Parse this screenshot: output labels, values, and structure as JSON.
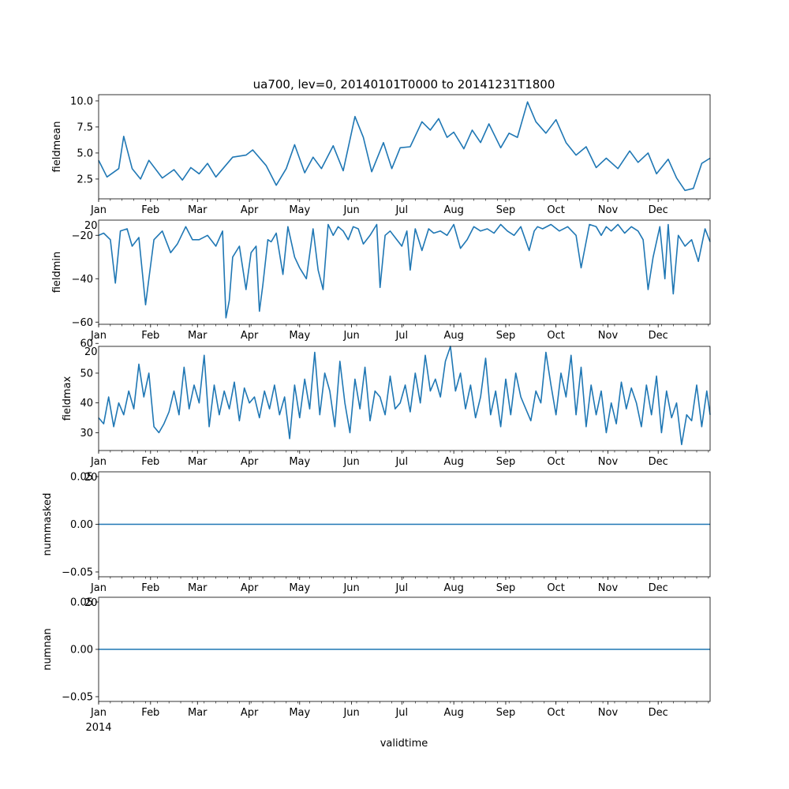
{
  "figure": {
    "title": "ua700, lev=0, 20140101T0000 to 20141231T1800",
    "xlabel": "validtime",
    "year_label": "2014",
    "line_color": "#1f77b4",
    "axis_color": "#000000"
  },
  "chart_data": [
    {
      "type": "line",
      "name": "fieldmean",
      "ylabel": "fieldmean",
      "ylim": [
        0.6,
        10.6
      ],
      "yticks": [
        2.5,
        5.0,
        7.5,
        10.0
      ],
      "ytick_labels": [
        "2.5",
        "5.0",
        "7.5",
        "10.0"
      ],
      "xlim": [
        0,
        365
      ],
      "xtick_positions": [
        0,
        31,
        59,
        90,
        120,
        151,
        181,
        212,
        243,
        273,
        304,
        334
      ],
      "xtick_labels": [
        "Jan",
        "Feb",
        "Mar",
        "Apr",
        "May",
        "Jun",
        "Jul",
        "Aug",
        "Sep",
        "Oct",
        "Nov",
        "Dec"
      ],
      "overlap_label": "",
      "x": [
        0,
        5,
        12,
        15,
        20,
        25,
        30,
        38,
        45,
        50,
        55,
        60,
        65,
        70,
        80,
        88,
        92,
        100,
        106,
        112,
        117,
        123,
        128,
        133,
        140,
        146,
        153,
        158,
        163,
        170,
        175,
        180,
        186,
        193,
        198,
        203,
        208,
        212,
        218,
        223,
        228,
        233,
        240,
        245,
        250,
        256,
        261,
        267,
        273,
        279,
        285,
        291,
        297,
        303,
        310,
        317,
        322,
        328,
        333,
        340,
        345,
        350,
        355,
        360,
        365
      ],
      "values": [
        4.3,
        2.7,
        3.5,
        6.6,
        3.5,
        2.5,
        4.3,
        2.6,
        3.4,
        2.4,
        3.6,
        3.0,
        4.0,
        2.7,
        4.6,
        4.8,
        5.3,
        3.8,
        1.9,
        3.5,
        5.8,
        3.1,
        4.6,
        3.5,
        5.7,
        3.3,
        8.5,
        6.5,
        3.2,
        6.0,
        3.5,
        5.5,
        5.6,
        8.0,
        7.2,
        8.3,
        6.5,
        7.0,
        5.4,
        7.2,
        6.0,
        7.8,
        5.5,
        6.9,
        6.5,
        9.9,
        8.0,
        6.9,
        8.2,
        6.0,
        4.8,
        5.6,
        3.6,
        4.5,
        3.5,
        5.2,
        4.1,
        5.0,
        3.0,
        4.4,
        2.6,
        1.4,
        1.6,
        4.0,
        4.5
      ]
    },
    {
      "type": "line",
      "name": "fieldmin",
      "ylabel": "fieldmin",
      "ylim": [
        -61,
        -13
      ],
      "yticks": [
        -60,
        -40,
        -20
      ],
      "ytick_labels": [
        "−60",
        "−40",
        "−20"
      ],
      "xlim": [
        0,
        365
      ],
      "xtick_positions": [
        0,
        31,
        59,
        90,
        120,
        151,
        181,
        212,
        243,
        273,
        304,
        334
      ],
      "xtick_labels": [
        "Jan",
        "Feb",
        "Mar",
        "Apr",
        "May",
        "Jun",
        "Jul",
        "Aug",
        "Sep",
        "Oct",
        "Nov",
        "Dec"
      ],
      "overlap_label": "20",
      "x": [
        0,
        3,
        7,
        10,
        13,
        17,
        20,
        24,
        28,
        30,
        33,
        38,
        43,
        47,
        52,
        56,
        60,
        65,
        70,
        74,
        76,
        78,
        80,
        84,
        88,
        91,
        94,
        96,
        98,
        101,
        103,
        106,
        110,
        113,
        117,
        120,
        124,
        128,
        131,
        134,
        137,
        140,
        143,
        146,
        149,
        152,
        155,
        158,
        162,
        166,
        168,
        171,
        174,
        177,
        181,
        184,
        186,
        189,
        193,
        197,
        200,
        204,
        208,
        212,
        216,
        220,
        224,
        228,
        232,
        236,
        240,
        244,
        248,
        252,
        257,
        260,
        262,
        265,
        270,
        275,
        280,
        285,
        288,
        293,
        297,
        300,
        303,
        306,
        310,
        314,
        318,
        322,
        325,
        328,
        331,
        335,
        338,
        340,
        343,
        346,
        350,
        354,
        358,
        362,
        365
      ],
      "values": [
        -20,
        -19,
        -22,
        -42,
        -18,
        -17,
        -25,
        -21,
        -52,
        -40,
        -22,
        -18,
        -28,
        -24,
        -16,
        -22,
        -22,
        -20,
        -25,
        -18,
        -58,
        -50,
        -30,
        -25,
        -45,
        -28,
        -25,
        -55,
        -43,
        -22,
        -23,
        -19,
        -38,
        -16,
        -30,
        -35,
        -40,
        -17,
        -36,
        -45,
        -15,
        -20,
        -16,
        -18,
        -22,
        -16,
        -17,
        -24,
        -20,
        -15,
        -44,
        -20,
        -18,
        -21,
        -25,
        -18,
        -36,
        -17,
        -27,
        -17,
        -19,
        -18,
        -20,
        -15,
        -26,
        -22,
        -16,
        -18,
        -17,
        -19,
        -15,
        -18,
        -20,
        -16,
        -27,
        -18,
        -16,
        -17,
        -15,
        -18,
        -16,
        -20,
        -35,
        -15,
        -16,
        -20,
        -16,
        -18,
        -15,
        -19,
        -16,
        -18,
        -22,
        -45,
        -30,
        -16,
        -40,
        -15,
        -47,
        -20,
        -25,
        -22,
        -32,
        -17,
        -23
      ]
    },
    {
      "type": "line",
      "name": "fieldmax",
      "ylabel": "fieldmax",
      "ylim": [
        24,
        59
      ],
      "yticks": [
        30,
        40,
        50,
        60
      ],
      "ytick_labels": [
        "30",
        "40",
        "50",
        "60"
      ],
      "xlim": [
        0,
        365
      ],
      "xtick_positions": [
        0,
        31,
        59,
        90,
        120,
        151,
        181,
        212,
        243,
        273,
        304,
        334
      ],
      "xtick_labels": [
        "Jan",
        "Feb",
        "Mar",
        "Apr",
        "May",
        "Jun",
        "Jul",
        "Aug",
        "Sep",
        "Oct",
        "Nov",
        "Dec"
      ],
      "overlap_label": "20",
      "x": [
        0,
        3,
        6,
        9,
        12,
        15,
        18,
        21,
        24,
        27,
        30,
        33,
        36,
        39,
        42,
        45,
        48,
        51,
        54,
        57,
        60,
        63,
        66,
        69,
        72,
        75,
        78,
        81,
        84,
        87,
        90,
        93,
        96,
        99,
        102,
        105,
        108,
        111,
        114,
        117,
        120,
        123,
        126,
        129,
        132,
        135,
        138,
        141,
        144,
        147,
        150,
        153,
        156,
        159,
        162,
        165,
        168,
        171,
        174,
        177,
        180,
        183,
        186,
        189,
        192,
        195,
        198,
        201,
        204,
        207,
        210,
        213,
        216,
        219,
        222,
        225,
        228,
        231,
        234,
        237,
        240,
        243,
        246,
        249,
        252,
        255,
        258,
        261,
        264,
        267,
        270,
        273,
        276,
        279,
        282,
        285,
        288,
        291,
        294,
        297,
        300,
        303,
        306,
        309,
        312,
        315,
        318,
        321,
        324,
        327,
        330,
        333,
        336,
        339,
        342,
        345,
        348,
        351,
        354,
        357,
        360,
        363,
        365
      ],
      "values": [
        35,
        33,
        42,
        32,
        40,
        36,
        44,
        38,
        53,
        42,
        50,
        32,
        30,
        33,
        37,
        44,
        36,
        52,
        38,
        46,
        40,
        56,
        32,
        46,
        36,
        44,
        38,
        47,
        34,
        45,
        40,
        42,
        35,
        44,
        38,
        46,
        36,
        42,
        28,
        46,
        35,
        48,
        38,
        57,
        36,
        50,
        44,
        32,
        54,
        40,
        30,
        48,
        38,
        52,
        34,
        44,
        42,
        36,
        49,
        38,
        40,
        46,
        37,
        50,
        40,
        56,
        44,
        48,
        42,
        54,
        59,
        44,
        50,
        38,
        46,
        35,
        42,
        55,
        36,
        44,
        32,
        48,
        36,
        50,
        42,
        38,
        34,
        44,
        40,
        57,
        46,
        36,
        50,
        42,
        56,
        36,
        52,
        32,
        46,
        36,
        44,
        30,
        40,
        33,
        47,
        38,
        45,
        40,
        32,
        46,
        36,
        49,
        30,
        44,
        35,
        40,
        26,
        36,
        34,
        46,
        32,
        44,
        36
      ]
    },
    {
      "type": "line",
      "name": "nummasked",
      "ylabel": "nummasked",
      "ylim": [
        -0.055,
        0.055
      ],
      "yticks": [
        -0.05,
        0.0,
        0.05
      ],
      "ytick_labels": [
        "−0.05",
        "0.00",
        "0.05"
      ],
      "xlim": [
        0,
        365
      ],
      "xtick_positions": [
        0,
        31,
        59,
        90,
        120,
        151,
        181,
        212,
        243,
        273,
        304,
        334
      ],
      "xtick_labels": [
        "Jan",
        "Feb",
        "Mar",
        "Apr",
        "May",
        "Jun",
        "Jul",
        "Aug",
        "Sep",
        "Oct",
        "Nov",
        "Dec"
      ],
      "overlap_label": "20",
      "x": [
        0,
        365
      ],
      "values": [
        0,
        0
      ]
    },
    {
      "type": "line",
      "name": "numnan",
      "ylabel": "numnan",
      "ylim": [
        -0.055,
        0.055
      ],
      "yticks": [
        -0.05,
        0.0,
        0.05
      ],
      "ytick_labels": [
        "−0.05",
        "0.00",
        "0.05"
      ],
      "xlim": [
        0,
        365
      ],
      "xtick_positions": [
        0,
        31,
        59,
        90,
        120,
        151,
        181,
        212,
        243,
        273,
        304,
        334
      ],
      "xtick_labels": [
        "Jan",
        "Feb",
        "Mar",
        "Apr",
        "May",
        "Jun",
        "Jul",
        "Aug",
        "Sep",
        "Oct",
        "Nov",
        "Dec"
      ],
      "overlap_label": "20",
      "x": [
        0,
        365
      ],
      "values": [
        0,
        0
      ]
    }
  ]
}
